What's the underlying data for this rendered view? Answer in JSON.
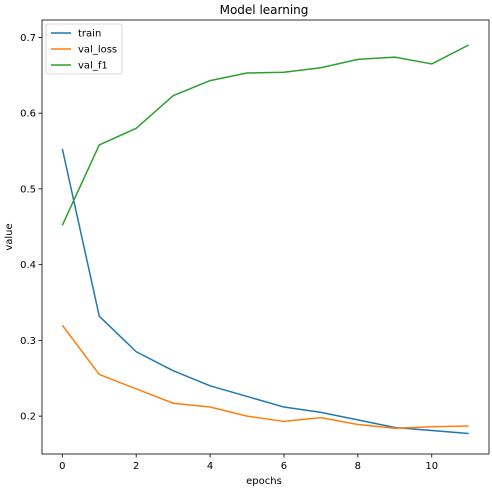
{
  "chart_data": {
    "type": "line",
    "title": "Model learning",
    "xlabel": "epochs",
    "ylabel": "value",
    "x": [
      0,
      1,
      2,
      3,
      4,
      5,
      6,
      7,
      8,
      9,
      10,
      11
    ],
    "xlim": [
      -0.55,
      11.55
    ],
    "ylim": [
      0.15,
      0.723
    ],
    "xticks": [
      0,
      2,
      4,
      6,
      8,
      10
    ],
    "yticks": [
      0.2,
      0.3,
      0.4,
      0.5,
      0.6,
      0.7
    ],
    "grid": false,
    "legend_position": "top-left",
    "series": [
      {
        "name": "train",
        "color": "#1f77b4",
        "values": [
          0.553,
          0.332,
          0.285,
          0.26,
          0.24,
          0.226,
          0.212,
          0.205,
          0.195,
          0.185,
          0.181,
          0.177
        ]
      },
      {
        "name": "val_loss",
        "color": "#ff7f0e",
        "values": [
          0.32,
          0.255,
          0.236,
          0.217,
          0.212,
          0.2,
          0.193,
          0.198,
          0.189,
          0.184,
          0.186,
          0.187
        ]
      },
      {
        "name": "val_f1",
        "color": "#2ca02c",
        "values": [
          0.452,
          0.558,
          0.58,
          0.623,
          0.643,
          0.653,
          0.654,
          0.66,
          0.671,
          0.674,
          0.665,
          0.69
        ]
      }
    ]
  }
}
